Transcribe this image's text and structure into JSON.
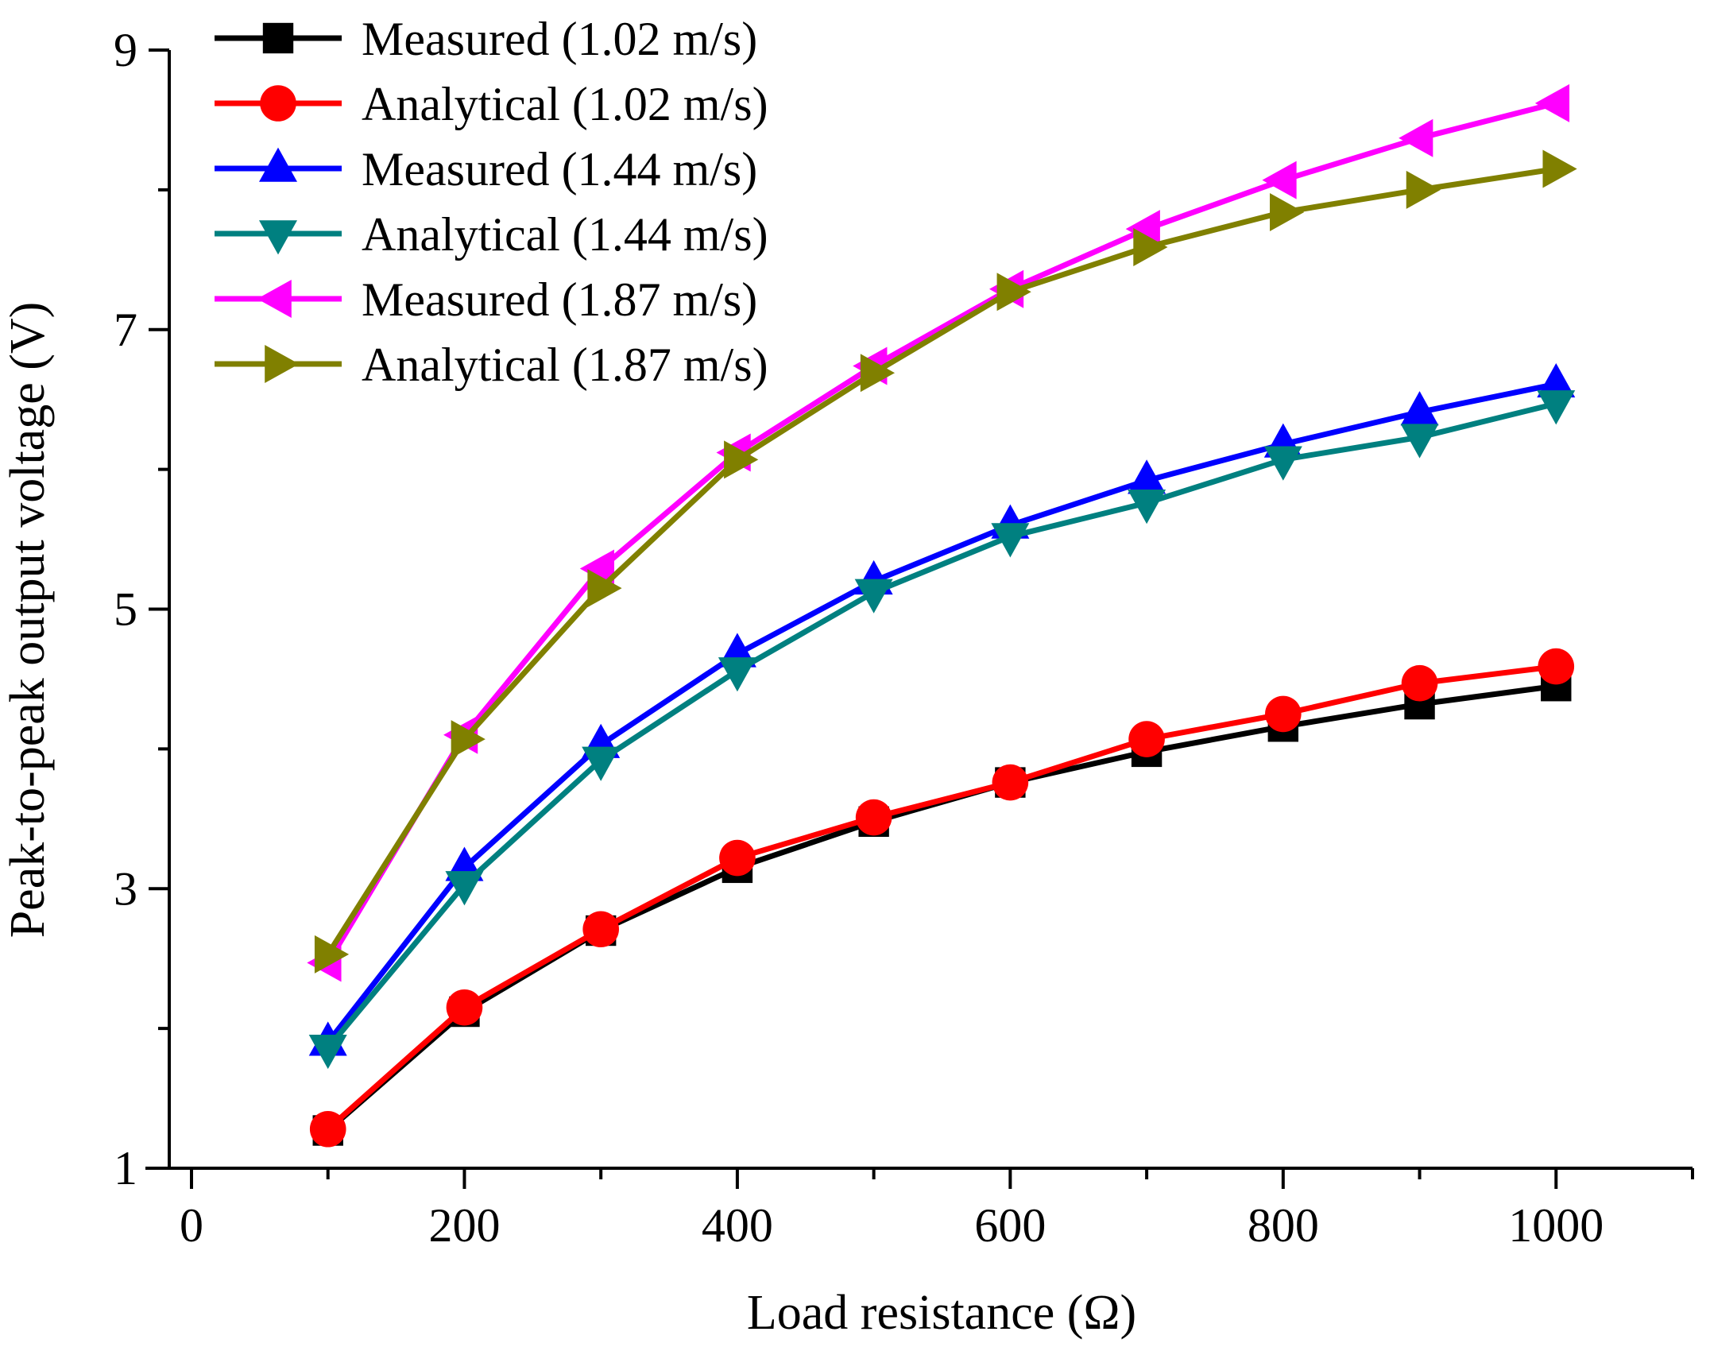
{
  "chart_data": {
    "type": "line",
    "title": "",
    "xlabel": "Load resistance (Ω)",
    "ylabel": "Peak-to-peak output voltage (V)",
    "xlim": [
      0,
      1100
    ],
    "ylim": [
      1,
      9
    ],
    "x_ticks": [
      0,
      200,
      400,
      600,
      800,
      1000
    ],
    "x_tick_labels": [
      "0",
      "200",
      "400",
      "600",
      "800",
      "1000"
    ],
    "y_ticks": [
      1,
      3,
      5,
      7,
      9
    ],
    "y_tick_labels": [
      "1",
      "3",
      "5",
      "7",
      "9"
    ],
    "grid": false,
    "legend_position": "top-left",
    "x": [
      100,
      200,
      300,
      400,
      500,
      600,
      700,
      800,
      900,
      1000
    ],
    "series": [
      {
        "name": "Measured (1.02 m/s)",
        "color": "#000000",
        "marker": "square",
        "values": [
          1.27,
          2.12,
          2.7,
          3.15,
          3.48,
          3.76,
          3.98,
          4.16,
          4.32,
          4.45
        ]
      },
      {
        "name": "Analytical (1.02 m/s)",
        "color": "#ff0000",
        "marker": "circle",
        "values": [
          1.28,
          2.15,
          2.71,
          3.22,
          3.51,
          3.76,
          4.07,
          4.25,
          4.47,
          4.59
        ]
      },
      {
        "name": "Measured (1.44 m/s)",
        "color": "#0000ff",
        "marker": "triangle-up",
        "values": [
          1.9,
          3.15,
          4.03,
          4.68,
          5.2,
          5.6,
          5.92,
          6.18,
          6.41,
          6.61
        ]
      },
      {
        "name": "Analytical (1.44 m/s)",
        "color": "#008080",
        "marker": "triangle-down",
        "values": [
          1.86,
          3.03,
          3.92,
          4.56,
          5.12,
          5.52,
          5.76,
          6.07,
          6.23,
          6.47
        ]
      },
      {
        "name": "Measured (1.87 m/s)",
        "color": "#ff00ff",
        "marker": "triangle-left",
        "values": [
          2.47,
          4.1,
          5.29,
          6.12,
          6.74,
          7.29,
          7.72,
          8.07,
          8.37,
          8.62
        ]
      },
      {
        "name": "Analytical (1.87 m/s)",
        "color": "#808000",
        "marker": "triangle-right",
        "values": [
          2.53,
          4.07,
          5.15,
          6.07,
          6.69,
          7.27,
          7.59,
          7.84,
          8.0,
          8.15
        ]
      }
    ]
  }
}
